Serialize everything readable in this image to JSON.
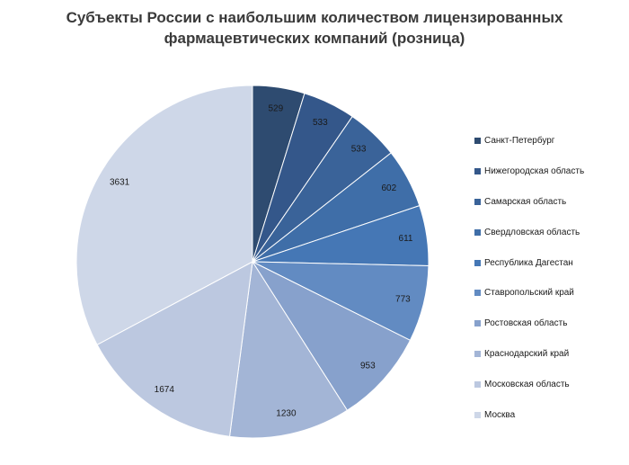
{
  "chart_data": {
    "type": "pie",
    "title_lines": [
      "Субъекты России с наибольшим количеством лицензированных",
      "фармацевтических компаний (розница)"
    ],
    "legend_position": "right",
    "slices": [
      {
        "name": "Санкт-Петербург",
        "value": 529,
        "color": "#2e4b70"
      },
      {
        "name": "Нижегородская область",
        "value": 533,
        "color": "#34578a"
      },
      {
        "name": "Самарская область",
        "value": 533,
        "color": "#3a6399"
      },
      {
        "name": "Свердловская область",
        "value": 602,
        "color": "#3f6ea8"
      },
      {
        "name": "Республика Дагестан",
        "value": 611,
        "color": "#4577b5"
      },
      {
        "name": "Ставропольский край",
        "value": 773,
        "color": "#628bc2"
      },
      {
        "name": "Ростовская область",
        "value": 953,
        "color": "#87a1cc"
      },
      {
        "name": "Краснодарский край",
        "value": 1230,
        "color": "#a3b5d6"
      },
      {
        "name": "Московская область",
        "value": 1674,
        "color": "#bcc8e0"
      },
      {
        "name": "Москва",
        "value": 3631,
        "color": "#ced7e8"
      }
    ]
  }
}
